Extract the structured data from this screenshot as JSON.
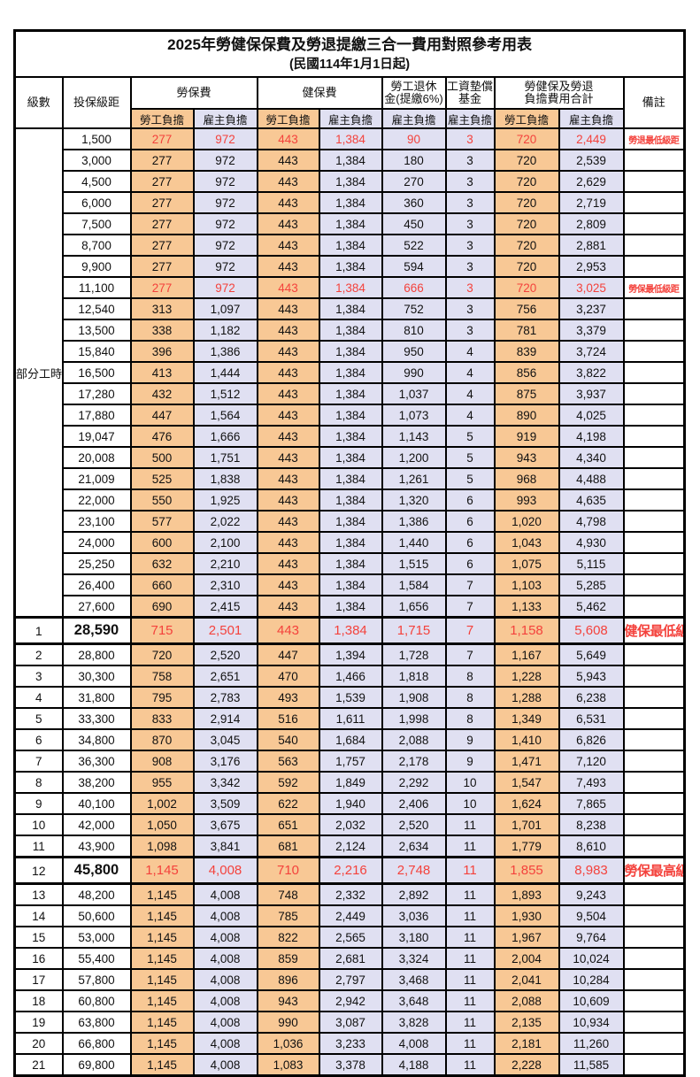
{
  "title": "2025年勞健保保費及勞退提繳三合一費用對照參考用表",
  "subtitle": "(民國114年1月1日起)",
  "colors": {
    "employee_fill": "#F8C895",
    "employer_fill": "#E0E0F2",
    "highlight_text": "#F4423C",
    "border": "#000000"
  },
  "header": {
    "level": "級數",
    "bracket": "投保級距",
    "labor": "勞保費",
    "health": "健保費",
    "pension_l1": "勞工退休",
    "pension_l2": "金(提繳6%)",
    "wage_l1": "工資墊償",
    "wage_l2": "基金",
    "total_l1": "勞健保及勞退",
    "total_l2": "負擔費用合計",
    "remark": "備註",
    "employee": "勞工負擔",
    "employer": "雇主負擔"
  },
  "group": {
    "label": "部分工時",
    "span": 23
  },
  "rows": [
    {
      "lv": "",
      "sal": "1,500",
      "v": [
        "277",
        "972",
        "443",
        "1,384",
        "90",
        "3",
        "720",
        "2,449"
      ],
      "rm": "勞退最低級距",
      "red": true,
      "big": false
    },
    {
      "lv": "",
      "sal": "3,000",
      "v": [
        "277",
        "972",
        "443",
        "1,384",
        "180",
        "3",
        "720",
        "2,539"
      ],
      "rm": "",
      "red": false,
      "big": false
    },
    {
      "lv": "",
      "sal": "4,500",
      "v": [
        "277",
        "972",
        "443",
        "1,384",
        "270",
        "3",
        "720",
        "2,629"
      ],
      "rm": "",
      "red": false,
      "big": false
    },
    {
      "lv": "",
      "sal": "6,000",
      "v": [
        "277",
        "972",
        "443",
        "1,384",
        "360",
        "3",
        "720",
        "2,719"
      ],
      "rm": "",
      "red": false,
      "big": false
    },
    {
      "lv": "",
      "sal": "7,500",
      "v": [
        "277",
        "972",
        "443",
        "1,384",
        "450",
        "3",
        "720",
        "2,809"
      ],
      "rm": "",
      "red": false,
      "big": false
    },
    {
      "lv": "",
      "sal": "8,700",
      "v": [
        "277",
        "972",
        "443",
        "1,384",
        "522",
        "3",
        "720",
        "2,881"
      ],
      "rm": "",
      "red": false,
      "big": false
    },
    {
      "lv": "",
      "sal": "9,900",
      "v": [
        "277",
        "972",
        "443",
        "1,384",
        "594",
        "3",
        "720",
        "2,953"
      ],
      "rm": "",
      "red": false,
      "big": false
    },
    {
      "lv": "",
      "sal": "11,100",
      "v": [
        "277",
        "972",
        "443",
        "1,384",
        "666",
        "3",
        "720",
        "3,025"
      ],
      "rm": "勞保最低級距",
      "red": true,
      "big": false
    },
    {
      "lv": "",
      "sal": "12,540",
      "v": [
        "313",
        "1,097",
        "443",
        "1,384",
        "752",
        "3",
        "756",
        "3,237"
      ],
      "rm": "",
      "red": false,
      "big": false
    },
    {
      "lv": "",
      "sal": "13,500",
      "v": [
        "338",
        "1,182",
        "443",
        "1,384",
        "810",
        "3",
        "781",
        "3,379"
      ],
      "rm": "",
      "red": false,
      "big": false
    },
    {
      "lv": "",
      "sal": "15,840",
      "v": [
        "396",
        "1,386",
        "443",
        "1,384",
        "950",
        "4",
        "839",
        "3,724"
      ],
      "rm": "",
      "red": false,
      "big": false
    },
    {
      "lv": "",
      "sal": "16,500",
      "v": [
        "413",
        "1,444",
        "443",
        "1,384",
        "990",
        "4",
        "856",
        "3,822"
      ],
      "rm": "",
      "red": false,
      "big": false
    },
    {
      "lv": "",
      "sal": "17,280",
      "v": [
        "432",
        "1,512",
        "443",
        "1,384",
        "1,037",
        "4",
        "875",
        "3,937"
      ],
      "rm": "",
      "red": false,
      "big": false
    },
    {
      "lv": "",
      "sal": "17,880",
      "v": [
        "447",
        "1,564",
        "443",
        "1,384",
        "1,073",
        "4",
        "890",
        "4,025"
      ],
      "rm": "",
      "red": false,
      "big": false
    },
    {
      "lv": "",
      "sal": "19,047",
      "v": [
        "476",
        "1,666",
        "443",
        "1,384",
        "1,143",
        "5",
        "919",
        "4,198"
      ],
      "rm": "",
      "red": false,
      "big": false
    },
    {
      "lv": "",
      "sal": "20,008",
      "v": [
        "500",
        "1,751",
        "443",
        "1,384",
        "1,200",
        "5",
        "943",
        "4,340"
      ],
      "rm": "",
      "red": false,
      "big": false
    },
    {
      "lv": "",
      "sal": "21,009",
      "v": [
        "525",
        "1,838",
        "443",
        "1,384",
        "1,261",
        "5",
        "968",
        "4,488"
      ],
      "rm": "",
      "red": false,
      "big": false
    },
    {
      "lv": "",
      "sal": "22,000",
      "v": [
        "550",
        "1,925",
        "443",
        "1,384",
        "1,320",
        "6",
        "993",
        "4,635"
      ],
      "rm": "",
      "red": false,
      "big": false
    },
    {
      "lv": "",
      "sal": "23,100",
      "v": [
        "577",
        "2,022",
        "443",
        "1,384",
        "1,386",
        "6",
        "1,020",
        "4,798"
      ],
      "rm": "",
      "red": false,
      "big": false
    },
    {
      "lv": "",
      "sal": "24,000",
      "v": [
        "600",
        "2,100",
        "443",
        "1,384",
        "1,440",
        "6",
        "1,043",
        "4,930"
      ],
      "rm": "",
      "red": false,
      "big": false
    },
    {
      "lv": "",
      "sal": "25,250",
      "v": [
        "632",
        "2,210",
        "443",
        "1,384",
        "1,515",
        "6",
        "1,075",
        "5,115"
      ],
      "rm": "",
      "red": false,
      "big": false
    },
    {
      "lv": "",
      "sal": "26,400",
      "v": [
        "660",
        "2,310",
        "443",
        "1,384",
        "1,584",
        "7",
        "1,103",
        "5,285"
      ],
      "rm": "",
      "red": false,
      "big": false
    },
    {
      "lv": "",
      "sal": "27,600",
      "v": [
        "690",
        "2,415",
        "443",
        "1,384",
        "1,656",
        "7",
        "1,133",
        "5,462"
      ],
      "rm": "",
      "red": false,
      "big": false
    },
    {
      "lv": "1",
      "sal": "28,590",
      "v": [
        "715",
        "2,501",
        "443",
        "1,384",
        "1,715",
        "7",
        "1,158",
        "5,608"
      ],
      "rm": "健保最低級距",
      "red": true,
      "big": true
    },
    {
      "lv": "2",
      "sal": "28,800",
      "v": [
        "720",
        "2,520",
        "447",
        "1,394",
        "1,728",
        "7",
        "1,167",
        "5,649"
      ],
      "rm": "",
      "red": false,
      "big": false
    },
    {
      "lv": "3",
      "sal": "30,300",
      "v": [
        "758",
        "2,651",
        "470",
        "1,466",
        "1,818",
        "8",
        "1,228",
        "5,943"
      ],
      "rm": "",
      "red": false,
      "big": false
    },
    {
      "lv": "4",
      "sal": "31,800",
      "v": [
        "795",
        "2,783",
        "493",
        "1,539",
        "1,908",
        "8",
        "1,288",
        "6,238"
      ],
      "rm": "",
      "red": false,
      "big": false
    },
    {
      "lv": "5",
      "sal": "33,300",
      "v": [
        "833",
        "2,914",
        "516",
        "1,611",
        "1,998",
        "8",
        "1,349",
        "6,531"
      ],
      "rm": "",
      "red": false,
      "big": false
    },
    {
      "lv": "6",
      "sal": "34,800",
      "v": [
        "870",
        "3,045",
        "540",
        "1,684",
        "2,088",
        "9",
        "1,410",
        "6,826"
      ],
      "rm": "",
      "red": false,
      "big": false
    },
    {
      "lv": "7",
      "sal": "36,300",
      "v": [
        "908",
        "3,176",
        "563",
        "1,757",
        "2,178",
        "9",
        "1,471",
        "7,120"
      ],
      "rm": "",
      "red": false,
      "big": false
    },
    {
      "lv": "8",
      "sal": "38,200",
      "v": [
        "955",
        "3,342",
        "592",
        "1,849",
        "2,292",
        "10",
        "1,547",
        "7,493"
      ],
      "rm": "",
      "red": false,
      "big": false
    },
    {
      "lv": "9",
      "sal": "40,100",
      "v": [
        "1,002",
        "3,509",
        "622",
        "1,940",
        "2,406",
        "10",
        "1,624",
        "7,865"
      ],
      "rm": "",
      "red": false,
      "big": false
    },
    {
      "lv": "10",
      "sal": "42,000",
      "v": [
        "1,050",
        "3,675",
        "651",
        "2,032",
        "2,520",
        "11",
        "1,701",
        "8,238"
      ],
      "rm": "",
      "red": false,
      "big": false
    },
    {
      "lv": "11",
      "sal": "43,900",
      "v": [
        "1,098",
        "3,841",
        "681",
        "2,124",
        "2,634",
        "11",
        "1,779",
        "8,610"
      ],
      "rm": "",
      "red": false,
      "big": false
    },
    {
      "lv": "12",
      "sal": "45,800",
      "v": [
        "1,145",
        "4,008",
        "710",
        "2,216",
        "2,748",
        "11",
        "1,855",
        "8,983"
      ],
      "rm": "勞保最高級距",
      "red": true,
      "big": true
    },
    {
      "lv": "13",
      "sal": "48,200",
      "v": [
        "1,145",
        "4,008",
        "748",
        "2,332",
        "2,892",
        "11",
        "1,893",
        "9,243"
      ],
      "rm": "",
      "red": false,
      "big": false
    },
    {
      "lv": "14",
      "sal": "50,600",
      "v": [
        "1,145",
        "4,008",
        "785",
        "2,449",
        "3,036",
        "11",
        "1,930",
        "9,504"
      ],
      "rm": "",
      "red": false,
      "big": false
    },
    {
      "lv": "15",
      "sal": "53,000",
      "v": [
        "1,145",
        "4,008",
        "822",
        "2,565",
        "3,180",
        "11",
        "1,967",
        "9,764"
      ],
      "rm": "",
      "red": false,
      "big": false
    },
    {
      "lv": "16",
      "sal": "55,400",
      "v": [
        "1,145",
        "4,008",
        "859",
        "2,681",
        "3,324",
        "11",
        "2,004",
        "10,024"
      ],
      "rm": "",
      "red": false,
      "big": false
    },
    {
      "lv": "17",
      "sal": "57,800",
      "v": [
        "1,145",
        "4,008",
        "896",
        "2,797",
        "3,468",
        "11",
        "2,041",
        "10,284"
      ],
      "rm": "",
      "red": false,
      "big": false
    },
    {
      "lv": "18",
      "sal": "60,800",
      "v": [
        "1,145",
        "4,008",
        "943",
        "2,942",
        "3,648",
        "11",
        "2,088",
        "10,609"
      ],
      "rm": "",
      "red": false,
      "big": false
    },
    {
      "lv": "19",
      "sal": "63,800",
      "v": [
        "1,145",
        "4,008",
        "990",
        "3,087",
        "3,828",
        "11",
        "2,135",
        "10,934"
      ],
      "rm": "",
      "red": false,
      "big": false
    },
    {
      "lv": "20",
      "sal": "66,800",
      "v": [
        "1,145",
        "4,008",
        "1,036",
        "3,233",
        "4,008",
        "11",
        "2,181",
        "11,260"
      ],
      "rm": "",
      "red": false,
      "big": false
    },
    {
      "lv": "21",
      "sal": "69,800",
      "v": [
        "1,145",
        "4,008",
        "1,083",
        "3,378",
        "4,188",
        "11",
        "2,228",
        "11,585"
      ],
      "rm": "",
      "red": false,
      "big": false
    }
  ]
}
